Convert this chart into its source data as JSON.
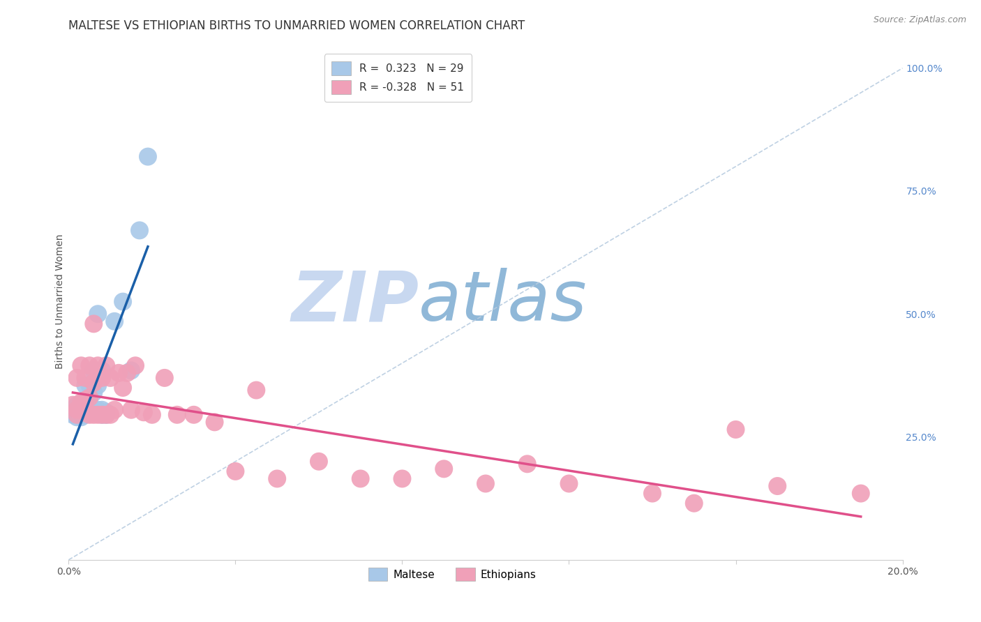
{
  "title": "MALTESE VS ETHIOPIAN BIRTHS TO UNMARRIED WOMEN CORRELATION CHART",
  "source": "Source: ZipAtlas.com",
  "ylabel_left": "Births to Unmarried Women",
  "xlim": [
    0.0,
    0.2
  ],
  "ylim": [
    0.0,
    1.05
  ],
  "xticks": [
    0.0,
    0.04,
    0.08,
    0.12,
    0.16,
    0.2
  ],
  "xtick_labels": [
    "0.0%",
    "",
    "",
    "",
    "",
    "20.0%"
  ],
  "yticks_right": [
    0.25,
    0.5,
    0.75,
    1.0
  ],
  "ytick_right_labels": [
    "25.0%",
    "50.0%",
    "75.0%",
    "100.0%"
  ],
  "maltese_R": 0.323,
  "maltese_N": 29,
  "ethiopian_R": -0.328,
  "ethiopian_N": 51,
  "maltese_color": "#a8c8e8",
  "maltese_line_color": "#1a5fa8",
  "ethiopian_color": "#f0a0b8",
  "ethiopian_line_color": "#e0508a",
  "background_color": "#ffffff",
  "grid_color": "#d0d8e8",
  "watermark_zip": "ZIP",
  "watermark_atlas": "atlas",
  "watermark_color_zip": "#c8d8f0",
  "watermark_color_atlas": "#90b8d8",
  "maltese_x": [
    0.001,
    0.002,
    0.002,
    0.002,
    0.003,
    0.003,
    0.004,
    0.004,
    0.004,
    0.005,
    0.005,
    0.005,
    0.006,
    0.006,
    0.006,
    0.006,
    0.007,
    0.007,
    0.007,
    0.008,
    0.008,
    0.008,
    0.009,
    0.009,
    0.011,
    0.013,
    0.015,
    0.017,
    0.019
  ],
  "maltese_y": [
    0.295,
    0.29,
    0.305,
    0.315,
    0.295,
    0.29,
    0.295,
    0.305,
    0.355,
    0.3,
    0.33,
    0.355,
    0.3,
    0.305,
    0.34,
    0.385,
    0.305,
    0.355,
    0.5,
    0.295,
    0.305,
    0.385,
    0.295,
    0.3,
    0.485,
    0.525,
    0.385,
    0.67,
    0.82
  ],
  "ethiopian_x": [
    0.001,
    0.002,
    0.002,
    0.002,
    0.003,
    0.003,
    0.003,
    0.004,
    0.004,
    0.004,
    0.005,
    0.005,
    0.005,
    0.006,
    0.006,
    0.006,
    0.007,
    0.007,
    0.008,
    0.008,
    0.009,
    0.009,
    0.01,
    0.01,
    0.011,
    0.012,
    0.013,
    0.014,
    0.015,
    0.016,
    0.018,
    0.02,
    0.023,
    0.026,
    0.03,
    0.035,
    0.04,
    0.045,
    0.05,
    0.06,
    0.07,
    0.08,
    0.09,
    0.1,
    0.11,
    0.12,
    0.14,
    0.15,
    0.16,
    0.17,
    0.19
  ],
  "ethiopian_y": [
    0.315,
    0.295,
    0.305,
    0.37,
    0.305,
    0.32,
    0.395,
    0.305,
    0.325,
    0.37,
    0.295,
    0.33,
    0.395,
    0.295,
    0.36,
    0.48,
    0.295,
    0.395,
    0.295,
    0.37,
    0.295,
    0.395,
    0.295,
    0.37,
    0.305,
    0.38,
    0.35,
    0.38,
    0.305,
    0.395,
    0.3,
    0.295,
    0.37,
    0.295,
    0.295,
    0.28,
    0.18,
    0.345,
    0.165,
    0.2,
    0.165,
    0.165,
    0.185,
    0.155,
    0.195,
    0.155,
    0.135,
    0.115,
    0.265,
    0.15,
    0.135
  ],
  "title_fontsize": 12,
  "axis_label_fontsize": 10,
  "tick_fontsize": 10,
  "legend_fontsize": 11
}
